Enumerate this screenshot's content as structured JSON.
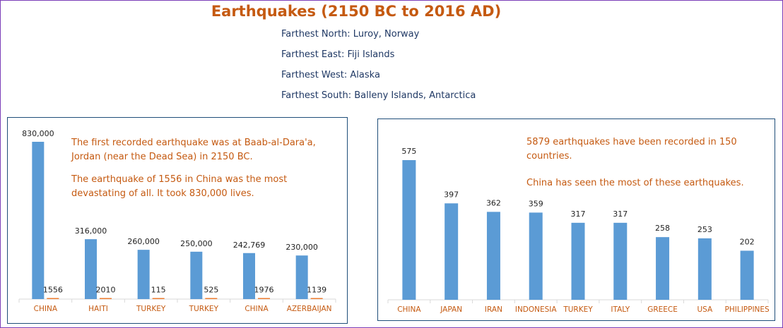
{
  "title": "Earthquakes (2150 BC to 2016 AD)",
  "facts": [
    "Farthest North: Luroy, Norway",
    "Farthest East: Fiji Islands",
    "Farthest West: Alaska",
    "Farthest South: Balleny Islands, Antarctica"
  ],
  "left_notes": [
    "The first recorded earthquake was at Baab-al-Dara'a, Jordan (near the Dead Sea) in 2150 BC.",
    "The earthquake of 1556 in China was the most devastating of all. It took 830,000 lives."
  ],
  "right_notes": [
    "5879 earthquakes have been recorded in 150 countries.",
    "China has seen the most of these earthquakes."
  ],
  "colors": {
    "bar_blue": "#5b9bd5",
    "bar_orange": "#ed7d31",
    "accent": "#c55a11",
    "fact_text": "#1f3864"
  },
  "chart_data": [
    {
      "type": "bar",
      "title": "",
      "categories": [
        "CHINA",
        "HAITI",
        "TURKEY",
        "TURKEY",
        "CHINA",
        "AZERBAIJAN"
      ],
      "series": [
        {
          "values": [
            830000,
            316000,
            260000,
            250000,
            242769,
            230000
          ],
          "labels": [
            "830,000",
            "316,000",
            "260,000",
            "250,000",
            "242,769",
            "230,000"
          ],
          "color": "#5b9bd5"
        },
        {
          "values": [
            1556,
            2010,
            115,
            525,
            1976,
            1139
          ],
          "labels": [
            "1556",
            "2010",
            "115",
            "525",
            "1976",
            "1139"
          ],
          "color": "#ed7d31"
        }
      ],
      "ylim": [
        0,
        830000
      ],
      "grid": false,
      "legend": "none"
    },
    {
      "type": "bar",
      "title": "",
      "categories": [
        "CHINA",
        "JAPAN",
        "IRAN",
        "INDONESIA",
        "TURKEY",
        "ITALY",
        "GREECE",
        "USA",
        "PHILIPPINES"
      ],
      "series": [
        {
          "values": [
            575,
            397,
            362,
            359,
            317,
            317,
            258,
            253,
            202
          ],
          "labels": [
            "575",
            "397",
            "362",
            "359",
            "317",
            "317",
            "258",
            "253",
            "202"
          ],
          "color": "#5b9bd5"
        }
      ],
      "ylim": [
        0,
        575
      ],
      "grid": false,
      "legend": "none"
    }
  ]
}
